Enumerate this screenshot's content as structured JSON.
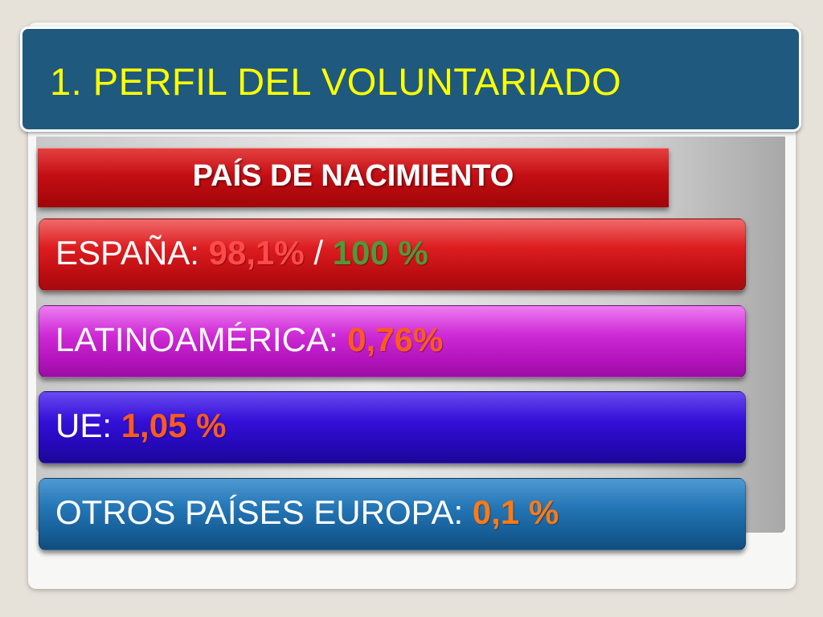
{
  "title": "1. PERFIL DEL VOLUNTARIADO",
  "subtitle": "PAÍS DE NACIMIENTO",
  "rows": [
    {
      "label": "ESPAÑA:",
      "value": "98,1%",
      "separator": "/",
      "value2": "100 %"
    },
    {
      "label": "LATINOAMÉRICA:",
      "value": "0,76%"
    },
    {
      "label": "UE:",
      "value": "1,05 %"
    },
    {
      "label": "OTROS PAÍSES EUROPA:",
      "value": "0,1 %"
    }
  ],
  "colors": {
    "title_bar": "#1f5a7e",
    "title_text": "#ffff00",
    "subtitle_bg": "#c40f14",
    "row_spain": "#dd1d20",
    "row_latam": "#cf2bd6",
    "row_ue": "#3410d8",
    "row_otros": "#2476b6",
    "value_orange": "#ff7a14",
    "value_green": "#4e9a38"
  }
}
